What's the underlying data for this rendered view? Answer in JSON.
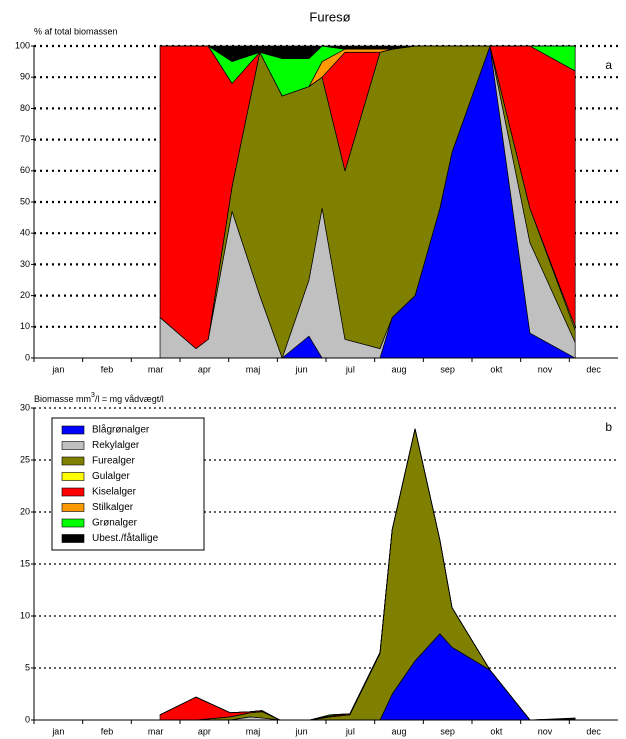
{
  "title": "Furesø",
  "chart_data": [
    {
      "type": "area",
      "stacked": true,
      "panel_label": "a",
      "ylabel": "% af total biomassen",
      "categories": [
        "jan",
        "feb",
        "mar",
        "apr",
        "maj",
        "jun",
        "jul",
        "aug",
        "sep",
        "okt",
        "nov",
        "dec"
      ],
      "xlim": [
        0,
        12
      ],
      "x": [
        2.59,
        3.33,
        3.58,
        4.07,
        4.64,
        5.1,
        5.65,
        5.92,
        6.39,
        7.11,
        7.36,
        7.83,
        8.34,
        8.59,
        9.37,
        10.19,
        11.12
      ],
      "ylim": [
        0,
        100
      ],
      "yticks": [
        0,
        10,
        20,
        30,
        40,
        50,
        60,
        70,
        80,
        90,
        100
      ],
      "grid": true,
      "series": [
        {
          "color": "#0000ff",
          "values": [
            0,
            0,
            0,
            0,
            0,
            0,
            7,
            0,
            0,
            0,
            13,
            20,
            48,
            66,
            100,
            8,
            0
          ]
        },
        {
          "color": "#c0c0c0",
          "values": [
            13,
            3,
            6,
            47,
            20,
            0,
            18,
            48,
            6,
            3,
            0,
            0,
            0,
            0,
            0,
            29,
            5
          ]
        },
        {
          "color": "#808000",
          "values": [
            0,
            0,
            0,
            8,
            78,
            84,
            62,
            42,
            54,
            95,
            86,
            80,
            52,
            34,
            0,
            11,
            4
          ]
        },
        {
          "color": "#ffff00",
          "values": [
            0,
            0,
            0,
            0,
            0,
            0,
            0,
            0,
            0,
            0,
            0,
            0,
            0,
            0,
            0,
            0,
            1
          ]
        },
        {
          "color": "#ff0000",
          "values": [
            87,
            97,
            94,
            33,
            0,
            0,
            0,
            0,
            38,
            0,
            0,
            0,
            0,
            0,
            0,
            52,
            82
          ]
        },
        {
          "color": "#ff9900",
          "values": [
            0,
            0,
            0,
            0,
            0,
            0,
            0,
            5,
            1,
            1,
            0,
            0,
            0,
            0,
            0,
            0,
            0
          ]
        },
        {
          "color": "#00ff00",
          "values": [
            0,
            0,
            0,
            7,
            0,
            12,
            9,
            5,
            0,
            0,
            0,
            0,
            0,
            0,
            0,
            0,
            8
          ]
        },
        {
          "color": "#000000",
          "values": [
            0,
            0,
            0,
            5,
            2,
            4,
            4,
            0,
            1,
            1,
            1,
            0,
            0,
            0,
            0,
            0,
            0
          ]
        }
      ]
    },
    {
      "type": "area",
      "stacked": true,
      "panel_label": "b",
      "ylabel": {
        "text": "Biomasse mm",
        "superscript": "3",
        "suffix": "/l = mg vådvægt/l"
      },
      "categories": [
        "jan",
        "feb",
        "mar",
        "apr",
        "maj",
        "jun",
        "jul",
        "aug",
        "sep",
        "okt",
        "nov",
        "dec"
      ],
      "xlim": [
        0,
        12
      ],
      "x": [
        2.59,
        3.33,
        4.03,
        4.44,
        4.69,
        5.05,
        5.67,
        6.08,
        6.49,
        7.11,
        7.36,
        7.83,
        8.34,
        8.59,
        9.37,
        10.19,
        11.12
      ],
      "ylim": [
        0,
        30
      ],
      "yticks": [
        0,
        5,
        10,
        15,
        20,
        25,
        30
      ],
      "grid": true,
      "series": [
        {
          "name": "Blågrønalger",
          "color": "#0000ff",
          "values": [
            0,
            0,
            0,
            0,
            0,
            0,
            0,
            0,
            0,
            0,
            2.5,
            5.7,
            8.3,
            7,
            4.8,
            0,
            0
          ]
        },
        {
          "name": "Rekylalger",
          "color": "#c0c0c0",
          "values": [
            0,
            0,
            0,
            0.3,
            0.2,
            0,
            0,
            0,
            0,
            0,
            0,
            0,
            0,
            0,
            0,
            0,
            0
          ]
        },
        {
          "name": "Furealger",
          "color": "#808000",
          "values": [
            0,
            0,
            0.3,
            0.4,
            0.6,
            0,
            0,
            0.3,
            0.5,
            6.4,
            15.8,
            22.3,
            9,
            3.8,
            0,
            0,
            0.1
          ]
        },
        {
          "name": "Gulalger",
          "color": "#ffff00",
          "values": [
            0,
            0,
            0,
            0,
            0,
            0,
            0,
            0,
            0,
            0,
            0,
            0,
            0,
            0,
            0,
            0,
            0
          ]
        },
        {
          "name": "Kiselalger",
          "color": "#ff0000",
          "values": [
            0.5,
            2.2,
            0.4,
            0.1,
            0.1,
            0,
            0,
            0.1,
            0.1,
            0.1,
            0,
            0,
            0,
            0,
            0,
            0,
            0
          ]
        },
        {
          "name": "Stilkalger",
          "color": "#ff9900",
          "values": [
            0,
            0,
            0,
            0,
            0,
            0,
            0,
            0,
            0,
            0,
            0,
            0,
            0,
            0,
            0,
            0,
            0
          ]
        },
        {
          "name": "Grønalger",
          "color": "#00ff00",
          "values": [
            0,
            0,
            0,
            0,
            0,
            0,
            0,
            0.1,
            0,
            0,
            0,
            0,
            0,
            0,
            0,
            0,
            0
          ]
        },
        {
          "name": "Ubest./fåtallige",
          "color": "#000000",
          "values": [
            0,
            0,
            0,
            0,
            0,
            0,
            0,
            0,
            0,
            0,
            0,
            0,
            0,
            0,
            0,
            0,
            0.1
          ]
        }
      ]
    }
  ]
}
